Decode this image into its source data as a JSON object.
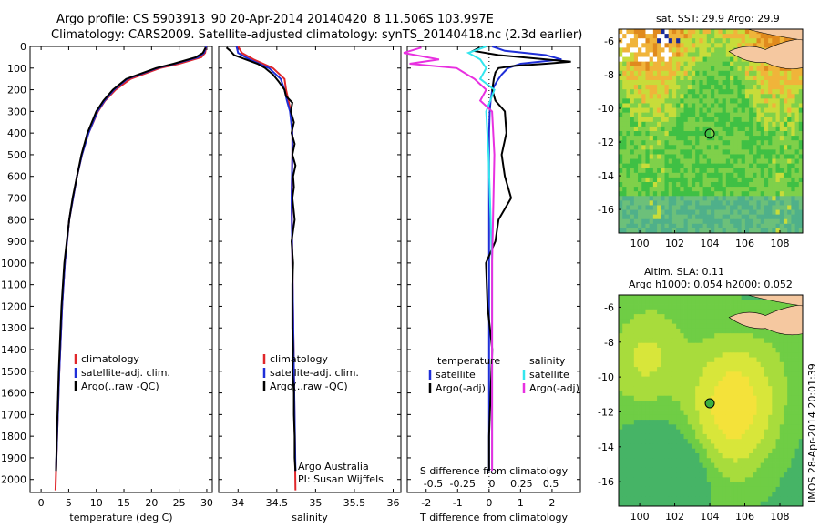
{
  "header": {
    "line1": "Argo profile: CS 5903913_90 20-Apr-2014 20140420_8 11.506S 103.997E",
    "line2": "Climatology: CARS2009. Satellite-adjusted climatology: synTS_20140418.nc (2.3d earlier)"
  },
  "colors": {
    "climatology": "#e0262a",
    "satellite": "#1f2fd8",
    "argo": "#000000",
    "sat_s": "#33e6ee",
    "argo_s": "#e830e0"
  },
  "depth_ticks": [
    "0",
    "100",
    "200",
    "300",
    "400",
    "500",
    "600",
    "700",
    "800",
    "900",
    "1000",
    "1100",
    "1200",
    "1300",
    "1400",
    "1500",
    "1600",
    "1700",
    "1800",
    "1900",
    "2000"
  ],
  "chart_data": [
    {
      "type": "line",
      "id": "temperature",
      "xlabel": "temperature (deg C)",
      "ylabel": "depth (dbar)",
      "xlim": [
        -2,
        31
      ],
      "ylim": [
        2060,
        0
      ],
      "x_ticks": [
        "0",
        "5",
        "10",
        "15",
        "20",
        "25",
        "30"
      ],
      "legend": [
        "climatology",
        "satellite-adj. clim.",
        "Argo(..raw -QC)"
      ],
      "series": [
        {
          "name": "climatology",
          "depth": [
            0,
            30,
            50,
            80,
            100,
            150,
            200,
            250,
            300,
            400,
            500,
            600,
            800,
            1000,
            1200,
            1500,
            1800,
            2050
          ],
          "values": [
            29.9,
            29.7,
            29.0,
            25,
            21.5,
            16.2,
            13.5,
            11.6,
            10.3,
            8.6,
            7.4,
            6.5,
            5.1,
            4.3,
            3.8,
            3.3,
            2.9,
            2.6
          ]
        },
        {
          "name": "satellite",
          "depth": [
            0,
            30,
            50,
            80,
            100,
            150,
            200,
            250,
            300,
            400,
            500,
            600,
            800,
            1000,
            1200,
            1500,
            1800,
            1960
          ],
          "values": [
            29.9,
            29.5,
            28.4,
            24.2,
            21,
            15.6,
            13.2,
            11.5,
            10.2,
            8.6,
            7.4,
            6.5,
            5.1,
            4.3,
            3.8,
            3.3,
            2.9,
            2.7
          ]
        },
        {
          "name": "Argo",
          "depth": [
            5,
            30,
            50,
            80,
            100,
            150,
            200,
            250,
            300,
            400,
            500,
            600,
            700,
            800,
            1000,
            1200,
            1500,
            1800,
            1960
          ],
          "values": [
            29.8,
            29.3,
            28.0,
            24.0,
            20.8,
            15.4,
            13.0,
            11.3,
            10.0,
            8.4,
            7.3,
            6.5,
            5.7,
            5.1,
            4.2,
            3.7,
            3.2,
            2.85,
            2.7
          ]
        }
      ]
    },
    {
      "type": "line",
      "id": "salinity",
      "xlabel": "salinity",
      "ylabel": "depth (dbar)",
      "xlim": [
        33.75,
        36.1
      ],
      "ylim": [
        2060,
        0
      ],
      "x_ticks": [
        "34",
        "34.5",
        "35",
        "35.5",
        "36"
      ],
      "legend": [
        "climatology",
        "satellite-adj. clim.",
        "Argo(..raw -QC)"
      ],
      "annotation": [
        "Argo Australia",
        "PI: Susan Wijffels"
      ],
      "series": [
        {
          "name": "climatology",
          "depth": [
            0,
            30,
            60,
            100,
            150,
            200,
            250,
            300,
            400,
            500,
            700,
            1000,
            1500,
            2050
          ],
          "values": [
            34.0,
            34.05,
            34.2,
            34.45,
            34.6,
            34.62,
            34.65,
            34.68,
            34.7,
            34.7,
            34.69,
            34.7,
            34.72,
            34.74
          ]
        },
        {
          "name": "satellite",
          "depth": [
            0,
            30,
            60,
            100,
            150,
            200,
            250,
            300,
            400,
            500,
            700,
            1000,
            1500,
            1960
          ],
          "values": [
            33.98,
            34.0,
            34.15,
            34.4,
            34.55,
            34.6,
            34.63,
            34.67,
            34.7,
            34.7,
            34.69,
            34.7,
            34.72,
            34.74
          ]
        },
        {
          "name": "Argo",
          "depth": [
            5,
            20,
            40,
            60,
            80,
            100,
            130,
            160,
            200,
            230,
            260,
            300,
            350,
            400,
            450,
            500,
            550,
            600,
            650,
            700,
            800,
            900,
            1000,
            1100,
            1200,
            1300,
            1400,
            1500,
            1600,
            1700,
            1800,
            1900,
            1960
          ],
          "values": [
            33.85,
            33.9,
            33.95,
            34.1,
            34.25,
            34.35,
            34.45,
            34.52,
            34.6,
            34.62,
            34.7,
            34.68,
            34.72,
            34.69,
            34.73,
            34.7,
            34.74,
            34.71,
            34.72,
            34.7,
            34.73,
            34.69,
            34.71,
            34.7,
            34.7,
            34.7,
            34.71,
            34.7,
            34.72,
            34.72,
            34.73,
            34.73,
            34.74
          ]
        }
      ]
    },
    {
      "type": "line",
      "id": "difference",
      "xlabel": "T difference from climatology",
      "xlabel_top": "S difference from climatology",
      "xlim": [
        -2.6,
        2.9
      ],
      "ylim": [
        2060,
        0
      ],
      "x_ticks": [
        "-2",
        "-1",
        "0",
        "1",
        "2"
      ],
      "x_ticks_top": [
        "-0.5",
        "-0.25",
        "0",
        "0.25",
        "0.5"
      ],
      "legend_titles": [
        "temperature",
        "salinity"
      ],
      "legend": [
        "satellite",
        "Argo(-adj)",
        "satellite",
        "Argo(-adj)"
      ],
      "series": [
        {
          "name": "T satellite",
          "depth": [
            0,
            20,
            40,
            60,
            80,
            100,
            130,
            160,
            200,
            250,
            300,
            400,
            600,
            1000,
            1500,
            1960
          ],
          "values": [
            0.1,
            0.5,
            1.8,
            2.3,
            1.0,
            0.6,
            0.4,
            0.25,
            0.1,
            0.05,
            0.02,
            0.0,
            0.0,
            0.0,
            0.0,
            0.0
          ]
        },
        {
          "name": "T Argo",
          "depth": [
            5,
            20,
            40,
            60,
            70,
            80,
            90,
            100,
            120,
            150,
            200,
            250,
            300,
            400,
            500,
            600,
            700,
            800,
            900,
            1000,
            1200,
            1400,
            1600,
            1800,
            1960
          ],
          "values": [
            -0.3,
            -0.5,
            0.3,
            1.8,
            2.6,
            1.8,
            0.8,
            0.3,
            0.2,
            0.15,
            0.1,
            0.2,
            0.5,
            0.55,
            0.4,
            0.5,
            0.7,
            0.3,
            0.2,
            -0.1,
            -0.05,
            0.1,
            0.05,
            0.0,
            0.0
          ]
        },
        {
          "name": "S satellite",
          "depth": [
            0,
            30,
            60,
            100,
            150,
            200,
            300,
            500,
            1000,
            1500,
            1960
          ],
          "values": [
            -0.05,
            -0.2,
            -0.1,
            -0.05,
            -0.1,
            0.02,
            -0.05,
            -0.03,
            0.0,
            0.0,
            0.0
          ]
        },
        {
          "name": "S Argo",
          "depth": [
            5,
            30,
            60,
            80,
            100,
            150,
            200,
            250,
            300,
            500,
            1000,
            1500,
            1960
          ],
          "values": [
            -0.6,
            -0.75,
            -0.45,
            -0.7,
            -0.3,
            -0.15,
            -0.05,
            -0.1,
            0.0,
            0.02,
            0.0,
            0.0,
            0.0
          ]
        }
      ]
    }
  ],
  "sst_map": {
    "title": "sat. SST: 29.9 Argo: 29.9",
    "x_ticks": [
      "100",
      "102",
      "104",
      "106",
      "108"
    ],
    "y_ticks": [
      "-6",
      "-8",
      "-10",
      "-12",
      "-14",
      "-16"
    ]
  },
  "sla_map": {
    "title1": "Altim. SLA: 0.11",
    "title2": "Argo h1000: 0.054 h2000: 0.052",
    "x_ticks": [
      "100",
      "102",
      "104",
      "106",
      "108"
    ],
    "y_ticks": [
      "-6",
      "-8",
      "-10",
      "-12",
      "-14",
      "-16"
    ]
  },
  "footer": "IMOS 28-Apr-2014 20:01:39"
}
